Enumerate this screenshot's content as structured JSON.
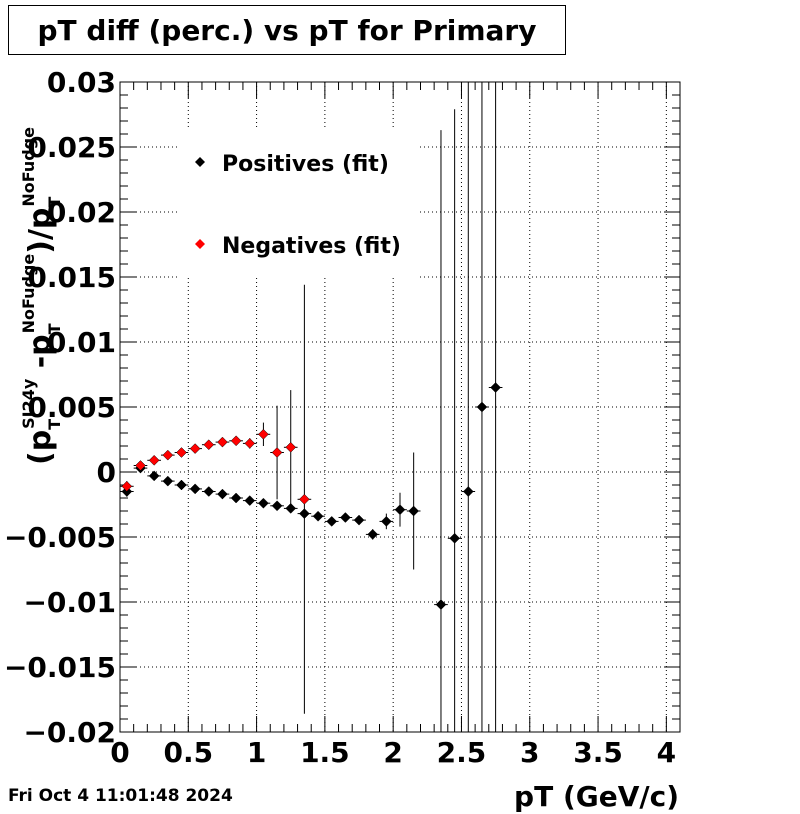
{
  "chart_data": {
    "type": "scatter",
    "title": "pT diff (perc.) vs pT for Primary",
    "xlabel": "pT (GeV/c)",
    "ylabel": "(p_T^SI24y - p_T^NoFudge)/p_T^NoFudge",
    "ylabel_parts": {
      "open": "(p",
      "sub_t": "T",
      "sup1": "SI24y",
      "minus": " -p",
      "sup2": "NoFudge",
      "close": ")/p",
      "sup3": "NoFudge"
    },
    "xlim": [
      0,
      4.1
    ],
    "ylim": [
      -0.02,
      0.03
    ],
    "x_ticks": [
      "0",
      "0.5",
      "1",
      "1.5",
      "2",
      "2.5",
      "3",
      "3.5",
      "4"
    ],
    "y_ticks": [
      "−0.02",
      "−0.015",
      "−0.01",
      "−0.005",
      "0",
      "0.005",
      "0.01",
      "0.015",
      "0.02",
      "0.025",
      "0.03"
    ],
    "grid": true,
    "legend_position": "top-left",
    "series": [
      {
        "name": "Positives (fit)",
        "color": "#000000",
        "points": [
          {
            "x": 0.05,
            "y": -0.0015,
            "yerr": 0.0004
          },
          {
            "x": 0.15,
            "y": 0.0003,
            "yerr": 0.0003
          },
          {
            "x": 0.25,
            "y": -0.0003,
            "yerr": 0.0002
          },
          {
            "x": 0.35,
            "y": -0.0007,
            "yerr": 0.0002
          },
          {
            "x": 0.45,
            "y": -0.001,
            "yerr": 0.0002
          },
          {
            "x": 0.55,
            "y": -0.0013,
            "yerr": 0.0002
          },
          {
            "x": 0.65,
            "y": -0.0015,
            "yerr": 0.0002
          },
          {
            "x": 0.75,
            "y": -0.0017,
            "yerr": 0.0002
          },
          {
            "x": 0.85,
            "y": -0.002,
            "yerr": 0.0002
          },
          {
            "x": 0.95,
            "y": -0.0022,
            "yerr": 0.0002
          },
          {
            "x": 1.05,
            "y": -0.0024,
            "yerr": 0.0002
          },
          {
            "x": 1.15,
            "y": -0.0026,
            "yerr": 0.0002
          },
          {
            "x": 1.25,
            "y": -0.0028,
            "yerr": 0.0002
          },
          {
            "x": 1.35,
            "y": -0.0032,
            "yerr": 0.0003
          },
          {
            "x": 1.45,
            "y": -0.0034,
            "yerr": 0.0002
          },
          {
            "x": 1.55,
            "y": -0.0038,
            "yerr": 0.0002
          },
          {
            "x": 1.65,
            "y": -0.0035,
            "yerr": 0.0002
          },
          {
            "x": 1.75,
            "y": -0.0037,
            "yerr": 0.0002
          },
          {
            "x": 1.85,
            "y": -0.0048,
            "yerr": 0.0004
          },
          {
            "x": 1.95,
            "y": -0.0038,
            "yerr": 0.0006
          },
          {
            "x": 2.05,
            "y": -0.0029,
            "yerr": 0.0013
          },
          {
            "x": 2.15,
            "y": -0.003,
            "yerr": 0.0045
          },
          {
            "x": 2.35,
            "y": -0.0102,
            "yerr": 0.0365
          },
          {
            "x": 2.45,
            "y": -0.0051,
            "yerr": 0.033
          },
          {
            "x": 2.55,
            "y": -0.0015,
            "yerr": 0.05
          },
          {
            "x": 2.65,
            "y": 0.005,
            "yerr": 0.05
          },
          {
            "x": 2.75,
            "y": 0.0065,
            "yerr": 0.05
          }
        ]
      },
      {
        "name": "Negatives (fit)",
        "color": "#ff0000",
        "points": [
          {
            "x": 0.05,
            "y": -0.0011,
            "yerr": 0.0004
          },
          {
            "x": 0.15,
            "y": 0.0005,
            "yerr": 0.0003
          },
          {
            "x": 0.25,
            "y": 0.0009,
            "yerr": 0.0002
          },
          {
            "x": 0.35,
            "y": 0.0013,
            "yerr": 0.0002
          },
          {
            "x": 0.45,
            "y": 0.0015,
            "yerr": 0.0002
          },
          {
            "x": 0.55,
            "y": 0.0018,
            "yerr": 0.0002
          },
          {
            "x": 0.65,
            "y": 0.0021,
            "yerr": 0.0002
          },
          {
            "x": 0.75,
            "y": 0.0023,
            "yerr": 0.0002
          },
          {
            "x": 0.85,
            "y": 0.0024,
            "yerr": 0.0003
          },
          {
            "x": 0.95,
            "y": 0.0022,
            "yerr": 0.0004
          },
          {
            "x": 1.05,
            "y": 0.0029,
            "yerr": 0.0009
          },
          {
            "x": 1.15,
            "y": 0.0015,
            "yerr": 0.0036
          },
          {
            "x": 1.25,
            "y": 0.0019,
            "yerr": 0.0044
          },
          {
            "x": 1.35,
            "y": -0.0021,
            "yerr": 0.0165
          }
        ]
      }
    ],
    "timestamp": "Fri Oct  4 11:01:48 2024"
  }
}
